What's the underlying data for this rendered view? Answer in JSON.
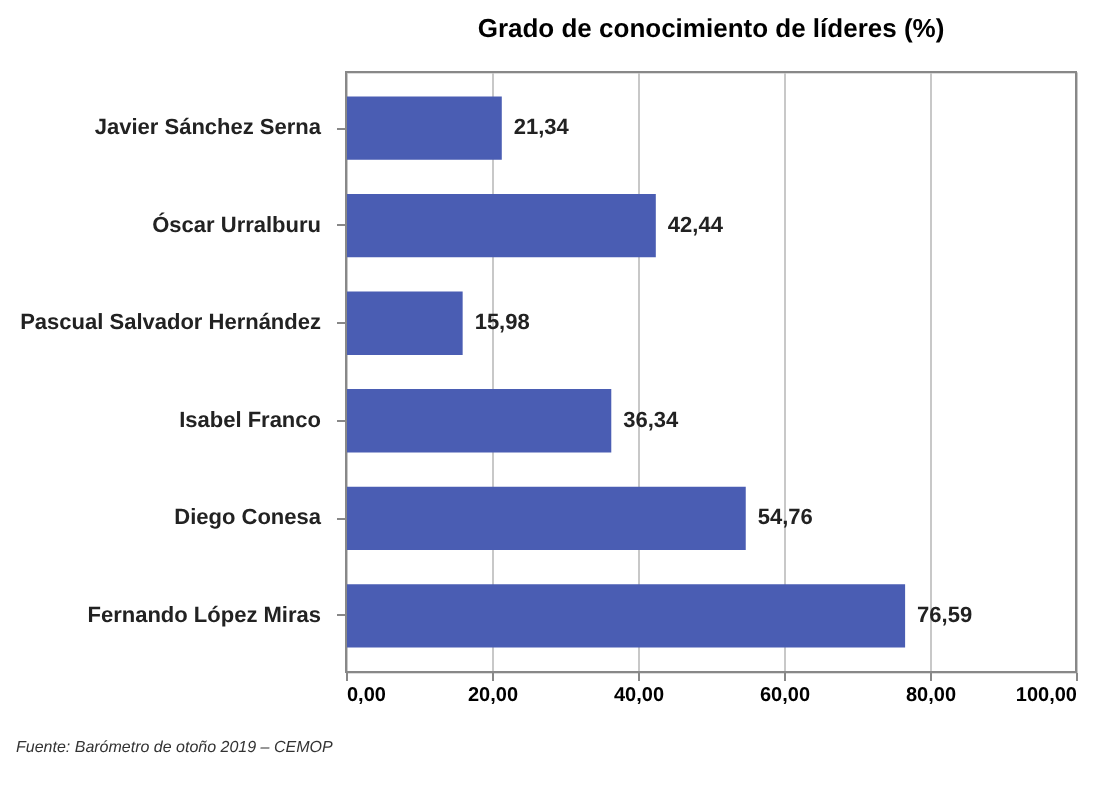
{
  "chart_data": {
    "type": "bar",
    "orientation": "horizontal",
    "title": "Grado de conocimiento de líderes (%)",
    "categories": [
      "Javier Sánchez Serna",
      "Óscar Urralburu",
      "Pascual Salvador Hernández",
      "Isabel Franco",
      "Diego Conesa",
      "Fernando López Miras"
    ],
    "values": [
      21.34,
      42.44,
      15.98,
      36.34,
      54.76,
      76.59
    ],
    "value_labels": [
      "21,34",
      "42,44",
      "15,98",
      "36,34",
      "54,76",
      "76,59"
    ],
    "color": "#4a5db3",
    "xlim": [
      0,
      100
    ],
    "xticks": [
      {
        "value": 0,
        "label": "0,00"
      },
      {
        "value": 20,
        "label": "20,00"
      },
      {
        "value": 40,
        "label": "40,00"
      },
      {
        "value": 60,
        "label": "60,00"
      },
      {
        "value": 80,
        "label": "80,00"
      },
      {
        "value": 100,
        "label": "100,00"
      }
    ],
    "grid": "x",
    "annotations": [
      "Fuente: Barómetro de otoño 2019 – CEMOP"
    ]
  }
}
